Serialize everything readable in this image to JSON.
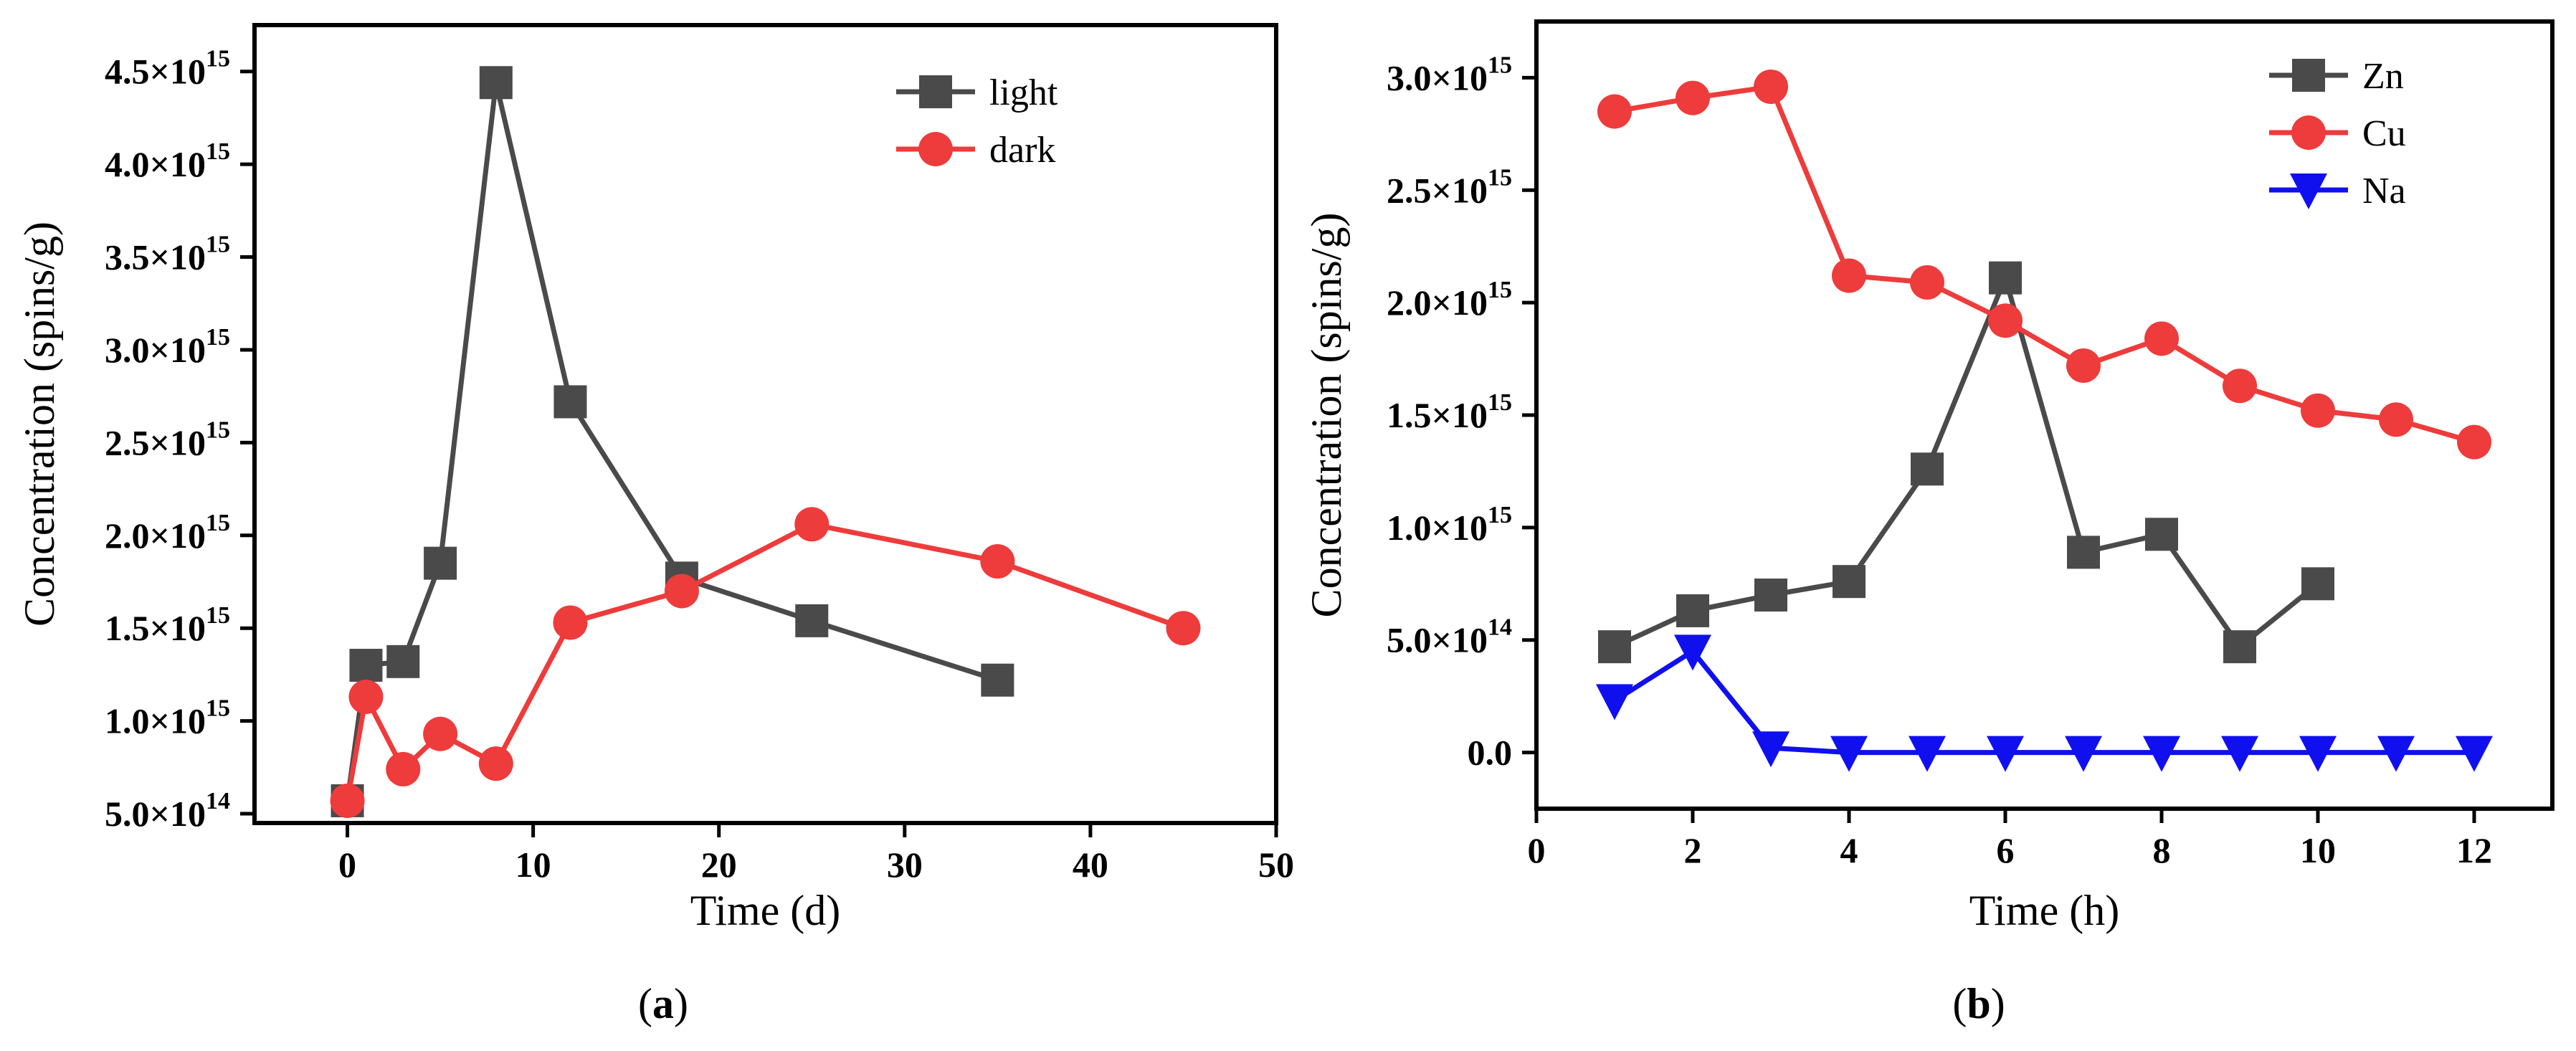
{
  "chart_data": [
    {
      "type": "line",
      "panel": "a",
      "panel_label_open": "(",
      "panel_label_letter": "a",
      "panel_label_close": ")",
      "xlabel": "Time (d)",
      "ylabel": "Concentration (spins/g)",
      "xlim": [
        -5,
        50
      ],
      "ylim": [
        450000000000000.0,
        4750000000000000.0
      ],
      "xticks": [
        {
          "value": 0,
          "label": "0"
        },
        {
          "value": 10,
          "label": "10"
        },
        {
          "value": 20,
          "label": "20"
        },
        {
          "value": 30,
          "label": "30"
        },
        {
          "value": 40,
          "label": "40"
        },
        {
          "value": 50,
          "label": "50"
        }
      ],
      "yticks": [
        {
          "value": 500000000000000.0,
          "mantissa": "5.0×10",
          "exp": "14"
        },
        {
          "value": 1000000000000000.0,
          "mantissa": "1.0×10",
          "exp": "15"
        },
        {
          "value": 1500000000000000.0,
          "mantissa": "1.5×10",
          "exp": "15"
        },
        {
          "value": 2000000000000000.0,
          "mantissa": "2.0×10",
          "exp": "15"
        },
        {
          "value": 2500000000000000.0,
          "mantissa": "2.5×10",
          "exp": "15"
        },
        {
          "value": 3000000000000000.0,
          "mantissa": "3.0×10",
          "exp": "15"
        },
        {
          "value": 3500000000000000.0,
          "mantissa": "3.5×10",
          "exp": "15"
        },
        {
          "value": 4000000000000000.0,
          "mantissa": "4.0×10",
          "exp": "15"
        },
        {
          "value": 4500000000000000.0,
          "mantissa": "4.5×10",
          "exp": "15"
        }
      ],
      "legend_position": "top-right",
      "series": [
        {
          "name": "light",
          "color": "#4a4a4a",
          "marker": "square",
          "x": [
            0,
            1,
            3,
            5,
            8,
            12,
            18,
            25,
            35
          ],
          "y": [
            570000000000000.0,
            1300000000000000.0,
            1320000000000000.0,
            1850000000000000.0,
            4440000000000000.0,
            2720000000000000.0,
            1770000000000000.0,
            1540000000000000.0,
            1220000000000000.0
          ]
        },
        {
          "name": "dark",
          "color": "#ee3b3b",
          "marker": "circle",
          "x": [
            0,
            1,
            3,
            5,
            8,
            12,
            18,
            25,
            35,
            45
          ],
          "y": [
            570000000000000.0,
            1130000000000000.0,
            740000000000000.0,
            930000000000000.0,
            770000000000000.0,
            1530000000000000.0,
            1700000000000000.0,
            2060000000000000.0,
            1860000000000000.0,
            1500000000000000.0
          ]
        }
      ]
    },
    {
      "type": "line",
      "panel": "b",
      "panel_label_open": "(",
      "panel_label_letter": "b",
      "panel_label_close": ")",
      "xlabel": "Time (h)",
      "ylabel": "Concentration (spins/g)",
      "xlim": [
        0,
        13
      ],
      "ylim": [
        -250000000000000.0,
        3250000000000000.0
      ],
      "xticks": [
        {
          "value": 0,
          "label": "0"
        },
        {
          "value": 2,
          "label": "2"
        },
        {
          "value": 4,
          "label": "4"
        },
        {
          "value": 6,
          "label": "6"
        },
        {
          "value": 8,
          "label": "8"
        },
        {
          "value": 10,
          "label": "10"
        },
        {
          "value": 12,
          "label": "12"
        }
      ],
      "yticks": [
        {
          "value": 0,
          "mantissa": "0.0",
          "exp": ""
        },
        {
          "value": 500000000000000.0,
          "mantissa": "5.0×10",
          "exp": "14"
        },
        {
          "value": 1000000000000000.0,
          "mantissa": "1.0×10",
          "exp": "15"
        },
        {
          "value": 1500000000000000.0,
          "mantissa": "1.5×10",
          "exp": "15"
        },
        {
          "value": 2000000000000000.0,
          "mantissa": "2.0×10",
          "exp": "15"
        },
        {
          "value": 2500000000000000.0,
          "mantissa": "2.5×10",
          "exp": "15"
        },
        {
          "value": 3000000000000000.0,
          "mantissa": "3.0×10",
          "exp": "15"
        }
      ],
      "legend_position": "top-right",
      "series": [
        {
          "name": "Zn",
          "color": "#4a4a4a",
          "marker": "square",
          "x": [
            1,
            2,
            3,
            4,
            5,
            6,
            7,
            8,
            9,
            10
          ],
          "y": [
            470000000000000.0,
            630000000000000.0,
            700000000000000.0,
            760000000000000.0,
            1260000000000000.0,
            2110000000000000.0,
            890000000000000.0,
            970000000000000.0,
            470000000000000.0,
            750000000000000.0
          ]
        },
        {
          "name": "Cu",
          "color": "#ee3b3b",
          "marker": "circle",
          "x": [
            1,
            2,
            3,
            4,
            5,
            6,
            7,
            8,
            9,
            10,
            11,
            12
          ],
          "y": [
            2850000000000000.0,
            2910000000000000.0,
            2960000000000000.0,
            2120000000000000.0,
            2090000000000000.0,
            1920000000000000.0,
            1720000000000000.0,
            1840000000000000.0,
            1630000000000000.0,
            1520000000000000.0,
            1480000000000000.0,
            1380000000000000.0
          ]
        },
        {
          "name": "Na",
          "color": "#1010ee",
          "marker": "triangle-down",
          "x": [
            1,
            2,
            3,
            4,
            5,
            6,
            7,
            8,
            9,
            10,
            11,
            12
          ],
          "y": [
            230000000000000.0,
            450000000000000.0,
            20000000000000.0,
            0,
            0,
            0,
            0,
            0,
            0,
            0,
            0,
            0
          ]
        }
      ]
    }
  ]
}
